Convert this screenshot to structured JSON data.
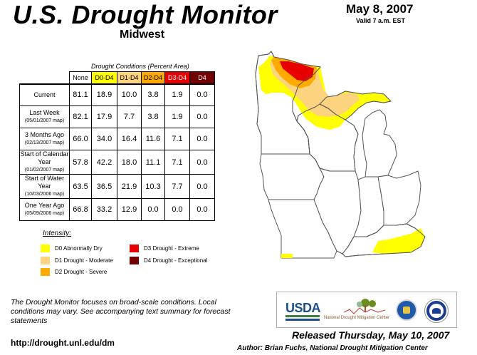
{
  "header": {
    "title": "U.S. Drought Monitor",
    "region": "Midwest",
    "date": "May 8, 2007",
    "valid": "Valid 7 a.m. EST"
  },
  "table": {
    "caption": "Drought Conditions (Percent Area)",
    "columns": [
      "None",
      "D0-D4",
      "D1-D4",
      "D2-D4",
      "D3-D4",
      "D4"
    ],
    "column_colors": [
      "#ffffff",
      "#ffff00",
      "#fcd37f",
      "#ffaa00",
      "#e60000",
      "#730000"
    ],
    "rows": [
      {
        "label": "Current",
        "sub": "",
        "values": [
          "81.1",
          "18.9",
          "10.0",
          "3.8",
          "1.9",
          "0.0"
        ]
      },
      {
        "label": "Last Week",
        "sub": "(05/01/2007 map)",
        "values": [
          "82.1",
          "17.9",
          "7.7",
          "3.8",
          "1.9",
          "0.0"
        ]
      },
      {
        "label": "3 Months Ago",
        "sub": "(02/13/2007 map)",
        "values": [
          "66.0",
          "34.0",
          "16.4",
          "11.6",
          "7.1",
          "0.0"
        ]
      },
      {
        "label": "Start of Calendar Year",
        "sub": "(01/02/2007 map)",
        "values": [
          "57.8",
          "42.2",
          "18.0",
          "11.1",
          "7.1",
          "0.0"
        ]
      },
      {
        "label": "Start of Water Year",
        "sub": "(10/03/2006 map)",
        "values": [
          "63.5",
          "36.5",
          "21.9",
          "10.3",
          "7.7",
          "0.0"
        ]
      },
      {
        "label": "One Year Ago",
        "sub": "(05/09/2006 map)",
        "values": [
          "66.8",
          "33.2",
          "12.9",
          "0.0",
          "0.0",
          "0.0"
        ]
      }
    ]
  },
  "legend": {
    "title": "Intensity:",
    "items": [
      {
        "label": "D0 Abnormally Dry",
        "color": "#ffff00"
      },
      {
        "label": "D1 Drought - Moderate",
        "color": "#fcd37f"
      },
      {
        "label": "D2 Drought - Severe",
        "color": "#ffaa00"
      },
      {
        "label": "D3 Drought - Extreme",
        "color": "#e60000"
      },
      {
        "label": "D4 Drought - Exceptional",
        "color": "#730000"
      }
    ]
  },
  "footer": {
    "note": "The Drought Monitor focuses on broad-scale conditions. Local conditions may vary. See accompanying text summary for forecast statements",
    "url": "http://drought.unl.edu/dm",
    "released": "Released Thursday, May 10, 2007",
    "author": "Author: Brian Fuchs, National Drought Mitigation Center"
  },
  "logos": {
    "usda": "USDA",
    "ndmc": "National Drought Mitigation Center"
  }
}
